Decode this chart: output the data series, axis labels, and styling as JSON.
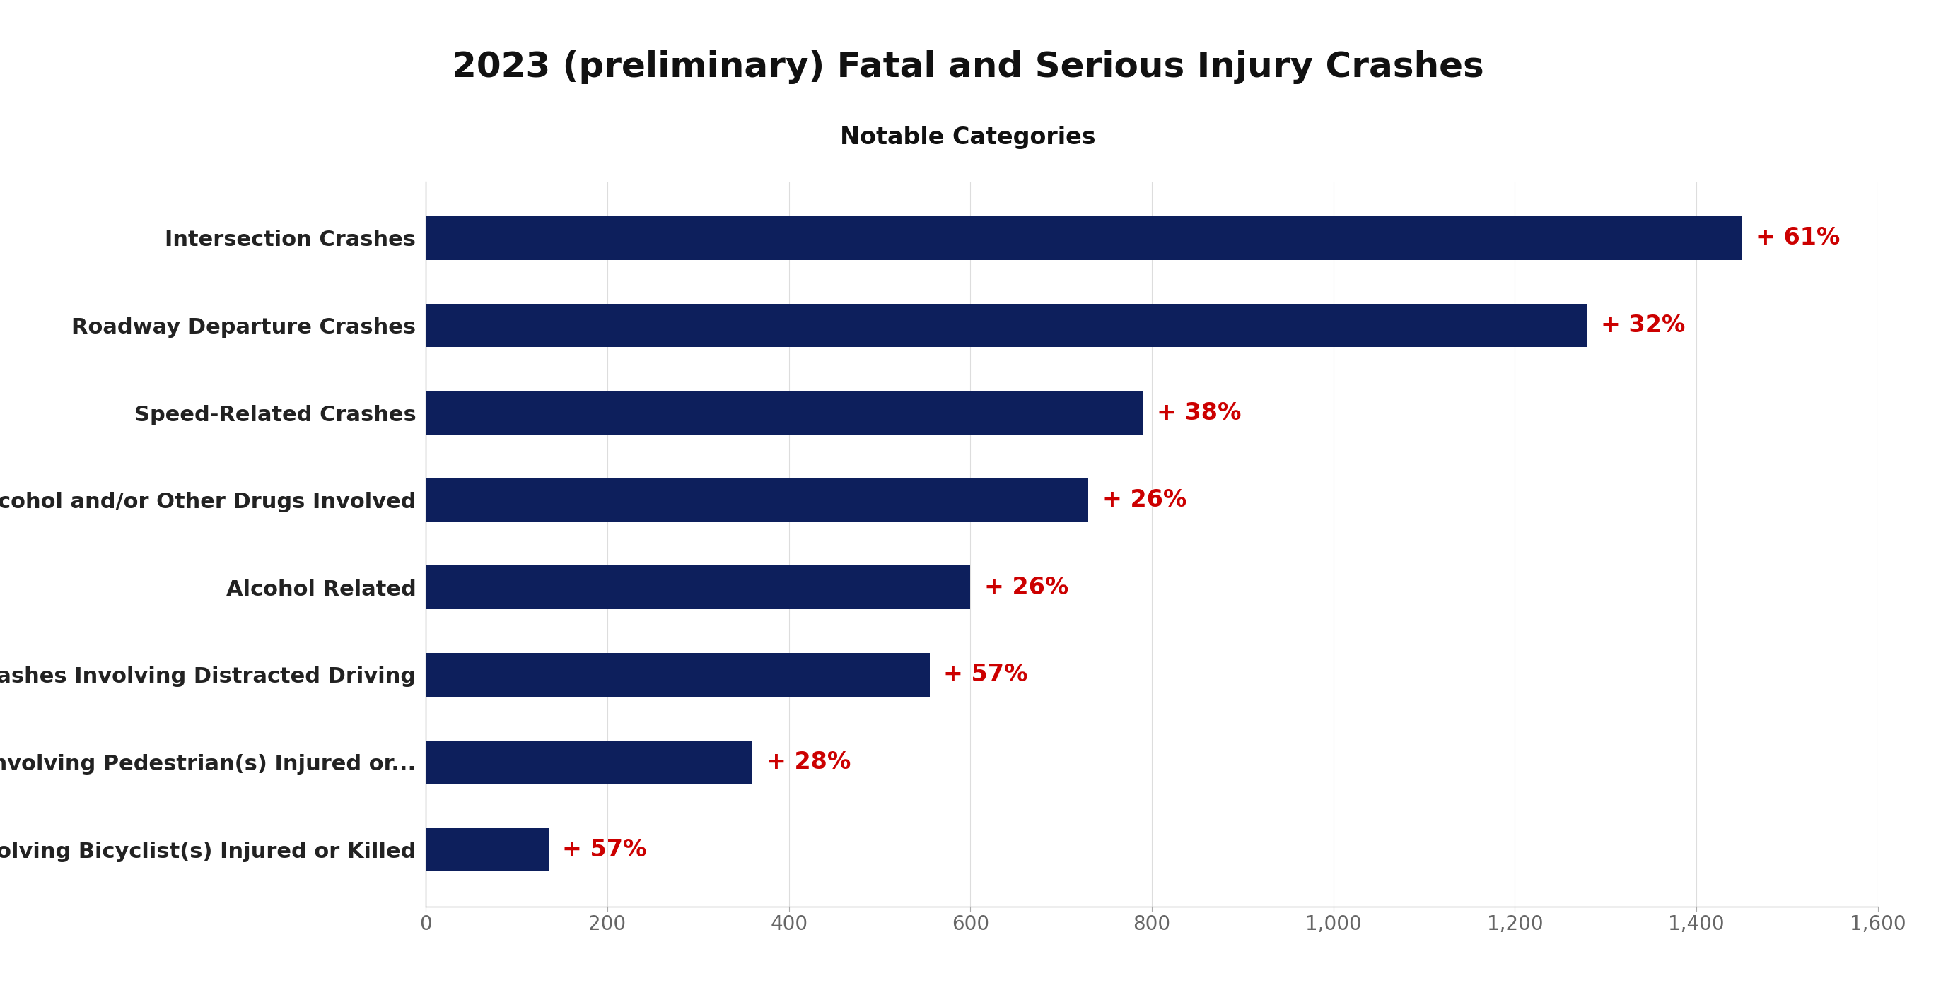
{
  "title": "2023 (preliminary) Fatal and Serious Injury Crashes",
  "subtitle": "Notable Categories",
  "categories": [
    "Intersection Crashes",
    "Roadway Departure Crashes",
    "Speed-Related Crashes",
    "Alcohol and/or Other Drugs Involved",
    "Alcohol Related",
    "Crashes Involving Distracted Driving",
    "Crashes Involving Pedestrian(s) Injured or...",
    "Crashes Involving Bicyclist(s) Injured or Killed"
  ],
  "values": [
    1450,
    1280,
    790,
    730,
    600,
    555,
    360,
    135
  ],
  "pct_labels": [
    "+ 61%",
    "+ 32%",
    "+ 38%",
    "+ 26%",
    "+ 26%",
    "+ 57%",
    "+ 28%",
    "+ 57%"
  ],
  "bar_color": "#0d1f5c",
  "pct_color": "#cc0000",
  "title_fontsize": 36,
  "subtitle_fontsize": 24,
  "label_fontsize": 22,
  "pct_fontsize": 24,
  "tick_fontsize": 20,
  "xlim": [
    0,
    1600
  ],
  "xticks": [
    0,
    200,
    400,
    600,
    800,
    1000,
    1200,
    1400,
    1600
  ],
  "xtick_labels": [
    "0",
    "200",
    "400",
    "600",
    "800",
    "1,000",
    "1,200",
    "1,400",
    "1,600"
  ],
  "background_color": "#ffffff",
  "bar_height": 0.5
}
